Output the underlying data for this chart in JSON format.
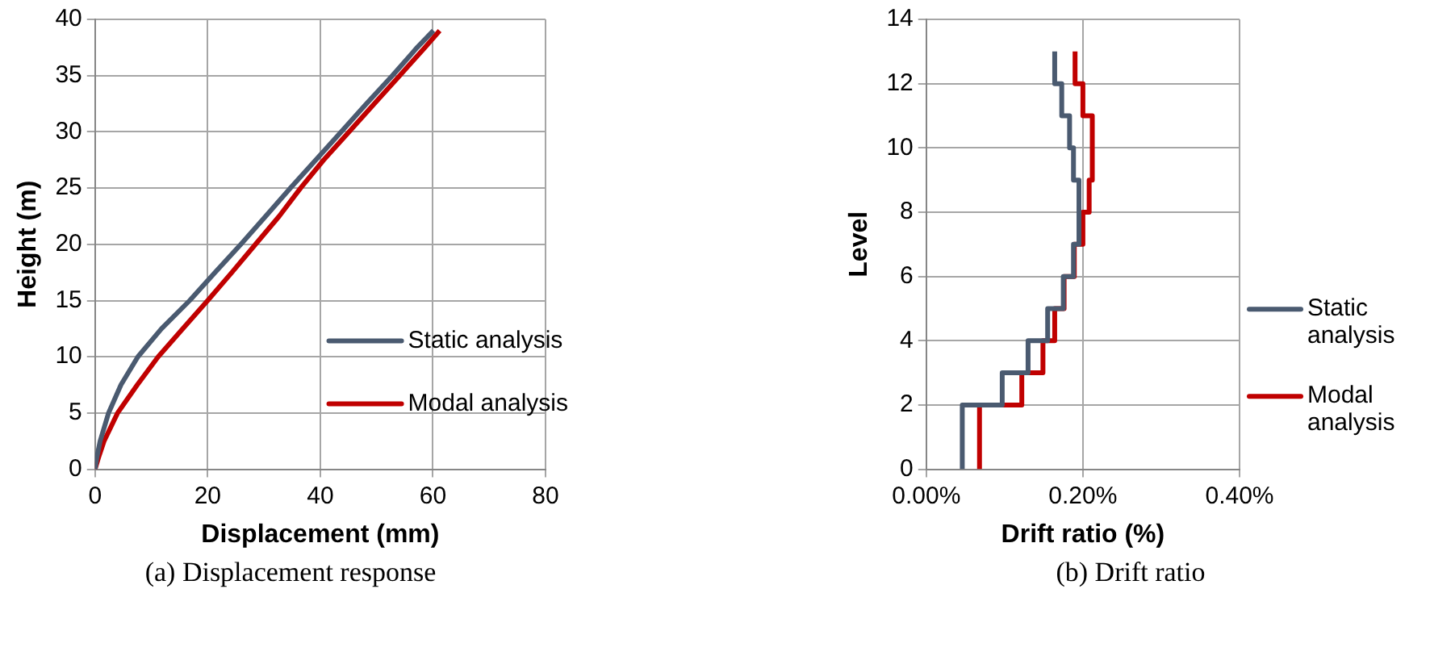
{
  "chart_data": [
    {
      "type": "line",
      "xlabel": "Displacement (mm)",
      "ylabel": "Height (m)",
      "annotations": [
        "(a) Displacement response"
      ],
      "xlim": [
        0,
        80
      ],
      "xticks": [
        0,
        20,
        40,
        60,
        80
      ],
      "ylim": [
        0,
        40
      ],
      "yticks": [
        0,
        5,
        10,
        15,
        20,
        25,
        30,
        35,
        40
      ],
      "grid": true,
      "legend": "bottom right",
      "marker": "none",
      "line_style": "solid",
      "series": [
        {
          "name": "Static analysis",
          "color": "#4a5a70",
          "x": [
            0,
            0.3,
            0.9,
            2.4,
            4.6,
            7.6,
            11.8,
            16.8,
            21.3,
            25.9,
            30.3,
            34.7,
            39.2,
            43.7,
            48.2,
            52.8,
            57.2,
            60.1
          ],
          "values": [
            0,
            1,
            2.5,
            5,
            7.5,
            10,
            12.5,
            15,
            17.5,
            20,
            22.5,
            25,
            27.5,
            30,
            32.5,
            35,
            37.5,
            39
          ]
        },
        {
          "name": "Modal analysis",
          "color": "#c00000",
          "x": [
            0,
            0.6,
            1.6,
            4.0,
            7.5,
            11.2,
            15.6,
            20.0,
            24.3,
            28.5,
            32.7,
            36.5,
            40.6,
            45.1,
            49.6,
            54.1,
            58.6,
            61.2
          ],
          "values": [
            0,
            1,
            2.5,
            5,
            7.5,
            10,
            12.5,
            15,
            17.5,
            20,
            22.5,
            25,
            27.5,
            30,
            32.5,
            35,
            37.5,
            39
          ]
        }
      ]
    },
    {
      "type": "line",
      "xlabel": "Drift ratio (%)",
      "ylabel": "Level",
      "annotations": [
        "(b) Drift ratio"
      ],
      "xlim": [
        0,
        0.4
      ],
      "xticks": [
        {
          "value": 0,
          "label": "0.00%"
        },
        {
          "value": 0.2,
          "label": "0.20%"
        },
        {
          "value": 0.4,
          "label": "0.40%"
        }
      ],
      "ylim": [
        0,
        14
      ],
      "yticks": [
        0,
        2,
        4,
        6,
        8,
        10,
        12,
        14
      ],
      "grid": true,
      "legend": "right",
      "marker": "none",
      "line_style": "solid",
      "series": [
        {
          "name": "Static analysis",
          "color": "#4a5a70",
          "x": [
            0.046,
            0.046,
            0.097,
            0.097,
            0.13,
            0.13,
            0.155,
            0.155,
            0.175,
            0.175,
            0.188,
            0.188,
            0.195,
            0.195,
            0.188,
            0.188,
            0.183,
            0.183,
            0.173,
            0.173,
            0.164,
            0.164
          ],
          "values": [
            0,
            2,
            2,
            3,
            3,
            4,
            4,
            5,
            5,
            6,
            6,
            7,
            7,
            9,
            9,
            10,
            10,
            11,
            11,
            12,
            12,
            13
          ]
        },
        {
          "name": "Modal analysis",
          "color": "#c00000",
          "x": [
            0.068,
            0.068,
            0.122,
            0.122,
            0.149,
            0.149,
            0.164,
            0.164,
            0.176,
            0.176,
            0.189,
            0.189,
            0.2,
            0.2,
            0.208,
            0.208,
            0.212,
            0.212,
            0.2,
            0.2,
            0.19,
            0.19
          ],
          "values": [
            0,
            2,
            2,
            3,
            3,
            4,
            4,
            5,
            5,
            6,
            6,
            7,
            7,
            8,
            8,
            9,
            9,
            11,
            11,
            12,
            12,
            13
          ]
        }
      ]
    }
  ]
}
